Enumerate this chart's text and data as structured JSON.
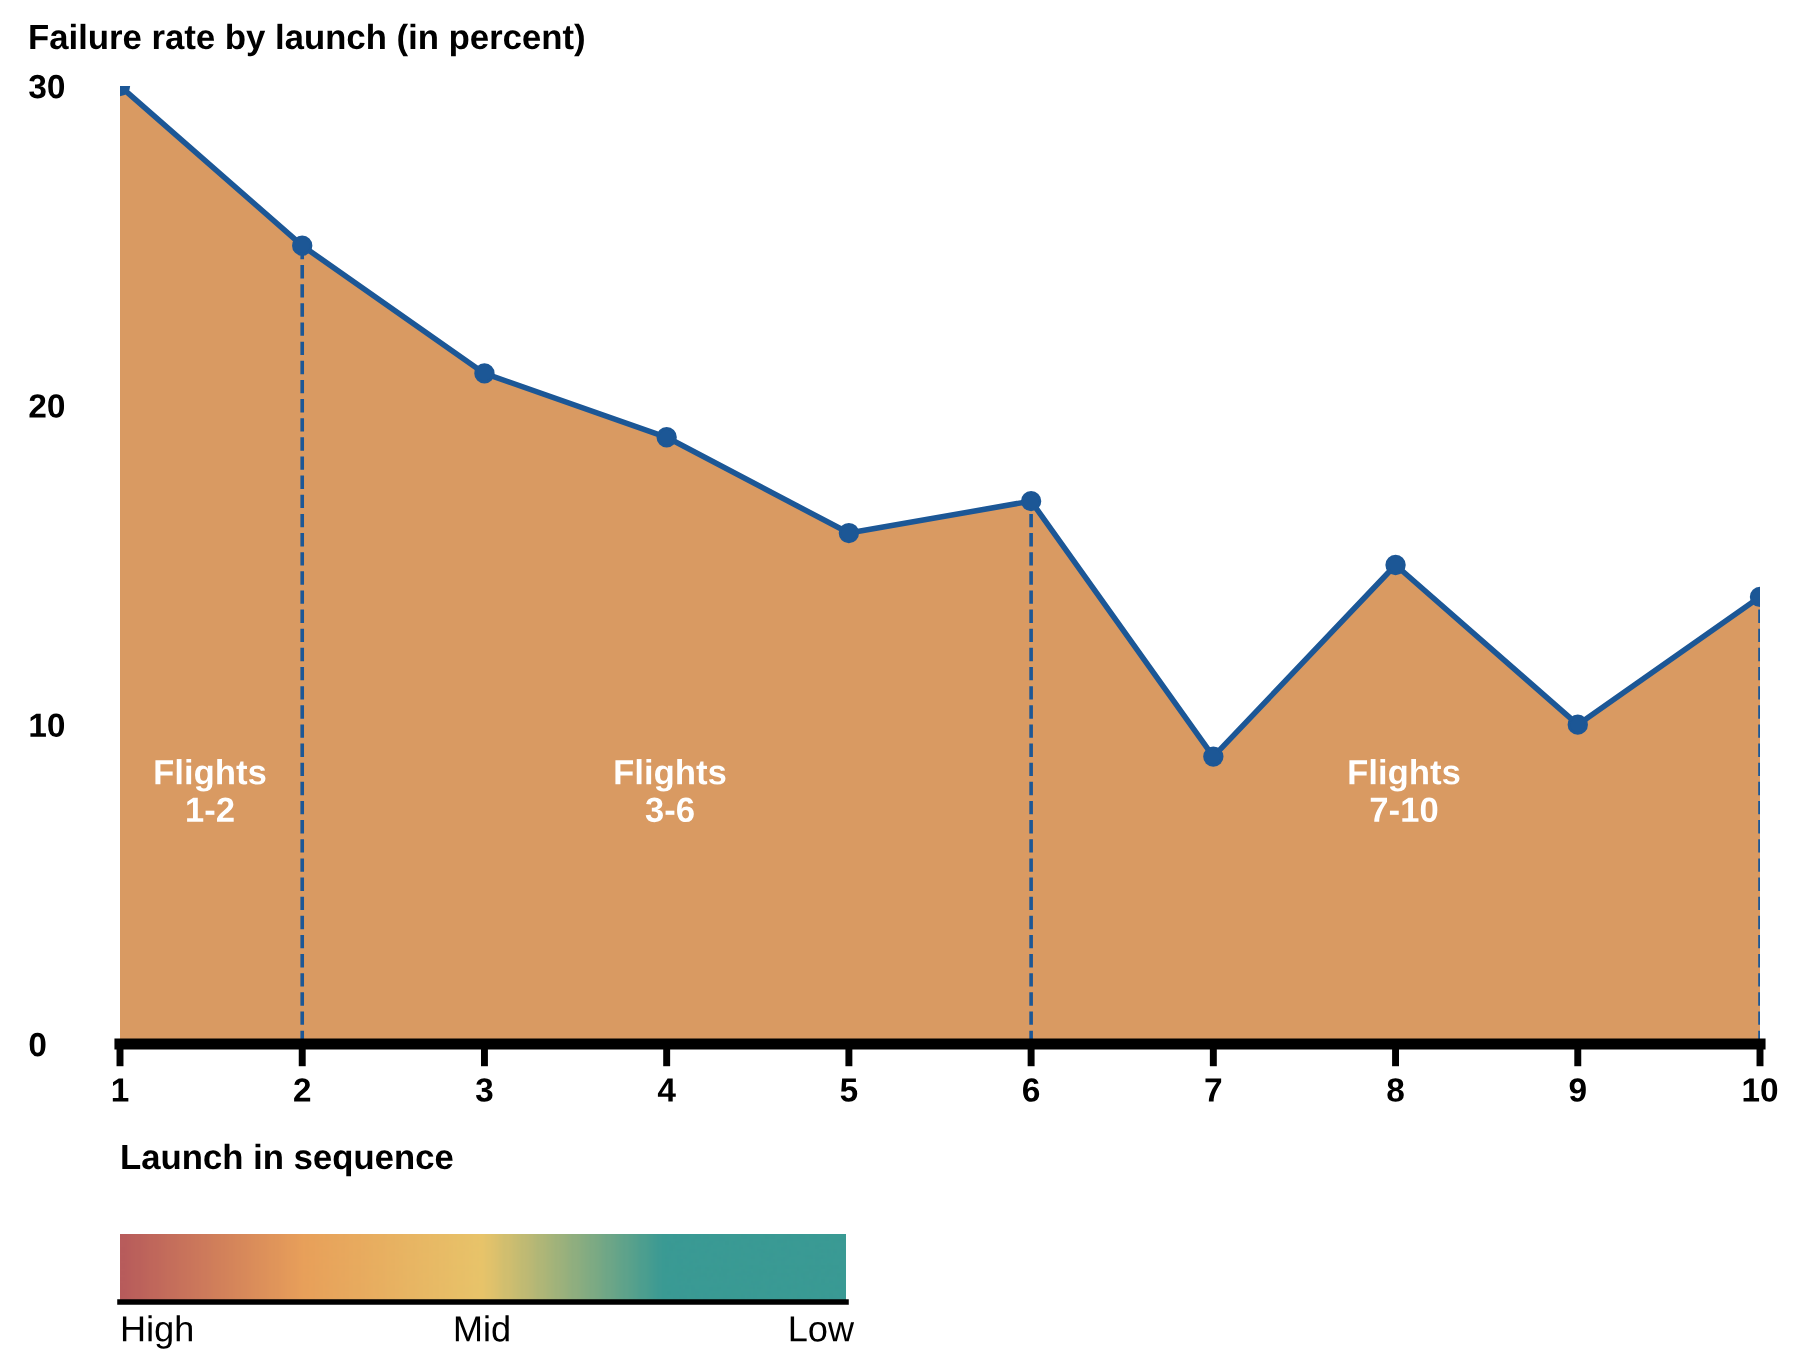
{
  "chart_data": {
    "type": "area",
    "title": "Failure rate by launch (in percent)",
    "xlabel": "Launch in sequence",
    "x": [
      1,
      2,
      3,
      4,
      5,
      6,
      7,
      8,
      9,
      10
    ],
    "series": [
      {
        "color": "#d99a62",
        "values": [
          30,
          25,
          21,
          19,
          16,
          17,
          9,
          15,
          10,
          14
        ]
      },
      {
        "type": "line",
        "marker": "circle",
        "color": "#1c5796",
        "values": [
          30,
          25,
          21,
          19,
          16,
          17,
          9,
          15,
          10,
          14
        ]
      }
    ],
    "xlim": [
      1,
      10
    ],
    "xticks": [
      1,
      2,
      3,
      4,
      5,
      6,
      7,
      8,
      9,
      10
    ],
    "ylim": [
      0,
      30
    ],
    "yticks": [
      0,
      10,
      20,
      30
    ],
    "line_style": "solid",
    "grid": false,
    "legend": false,
    "ref_lines": [
      {
        "axis": "x",
        "value": 2,
        "label": null,
        "color": "#1c5796",
        "line_style": "dashed"
      },
      {
        "axis": "x",
        "value": 6,
        "label": null,
        "color": "#1c5796",
        "line_style": "dashed"
      },
      {
        "axis": "x",
        "value": 10,
        "label": null,
        "color": "#1c5796",
        "line_style": "dashed"
      }
    ],
    "annotations": [
      "Flights\n1-2",
      "Flights\n3-6",
      "Flights\n7-10",
      "High",
      "Mid",
      "Low"
    ]
  }
}
